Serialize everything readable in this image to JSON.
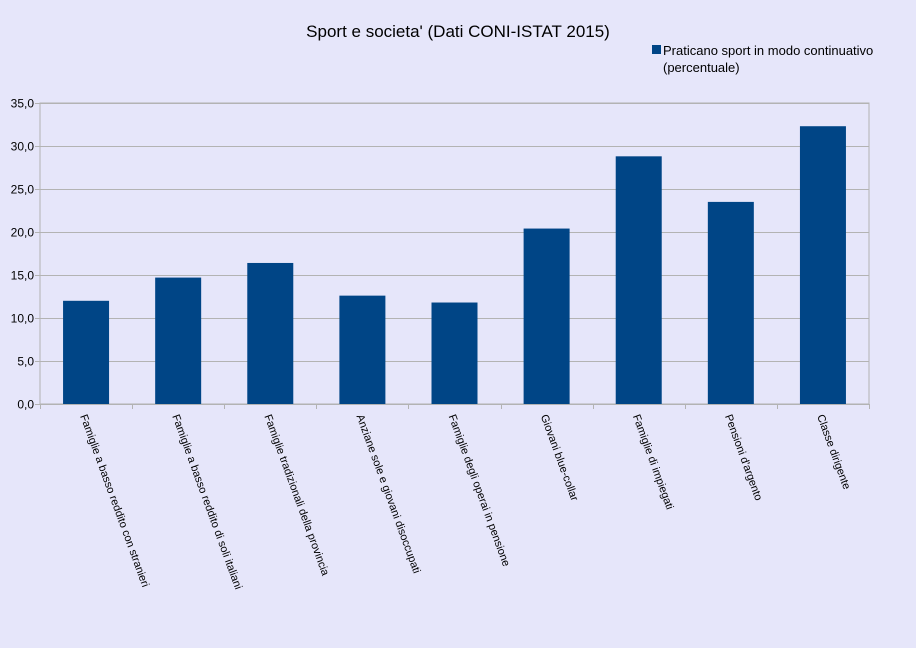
{
  "chart_data": {
    "type": "bar",
    "title": "Sport e societa' (Dati CONI-ISTAT 2015)",
    "xlabel": "",
    "ylabel": "",
    "categories": [
      "Famiglie a basso reddito con stranieri",
      "Famiglie a basso reddito di soli italiani",
      "Famiglie tradizionali della provincia",
      "Anziane sole e giovani disoccupati",
      "Famiglie degli operai in pensione",
      "Giovani blue-collar",
      "Famiglie di impiegati",
      "Pensioni d'argento",
      "Classe dirigente"
    ],
    "series": [
      {
        "name": "Praticano sport in modo continuativo (percentuale)",
        "values": [
          12.0,
          14.7,
          16.4,
          12.6,
          11.8,
          20.4,
          28.8,
          23.5,
          32.3
        ]
      }
    ],
    "ylim": [
      0,
      35
    ],
    "yticks": [
      0,
      5,
      10,
      15,
      20,
      25,
      30,
      35
    ],
    "ytick_labels": [
      "0,0",
      "5,0",
      "10,0",
      "15,0",
      "20,0",
      "25,0",
      "30,0",
      "35,0"
    ],
    "grid": true,
    "legend_position": "top-right",
    "colors": {
      "bar": "#004586",
      "grid": "#b3b3b3",
      "axis": "#b3b3b3",
      "background": "#e6e6fa"
    }
  }
}
